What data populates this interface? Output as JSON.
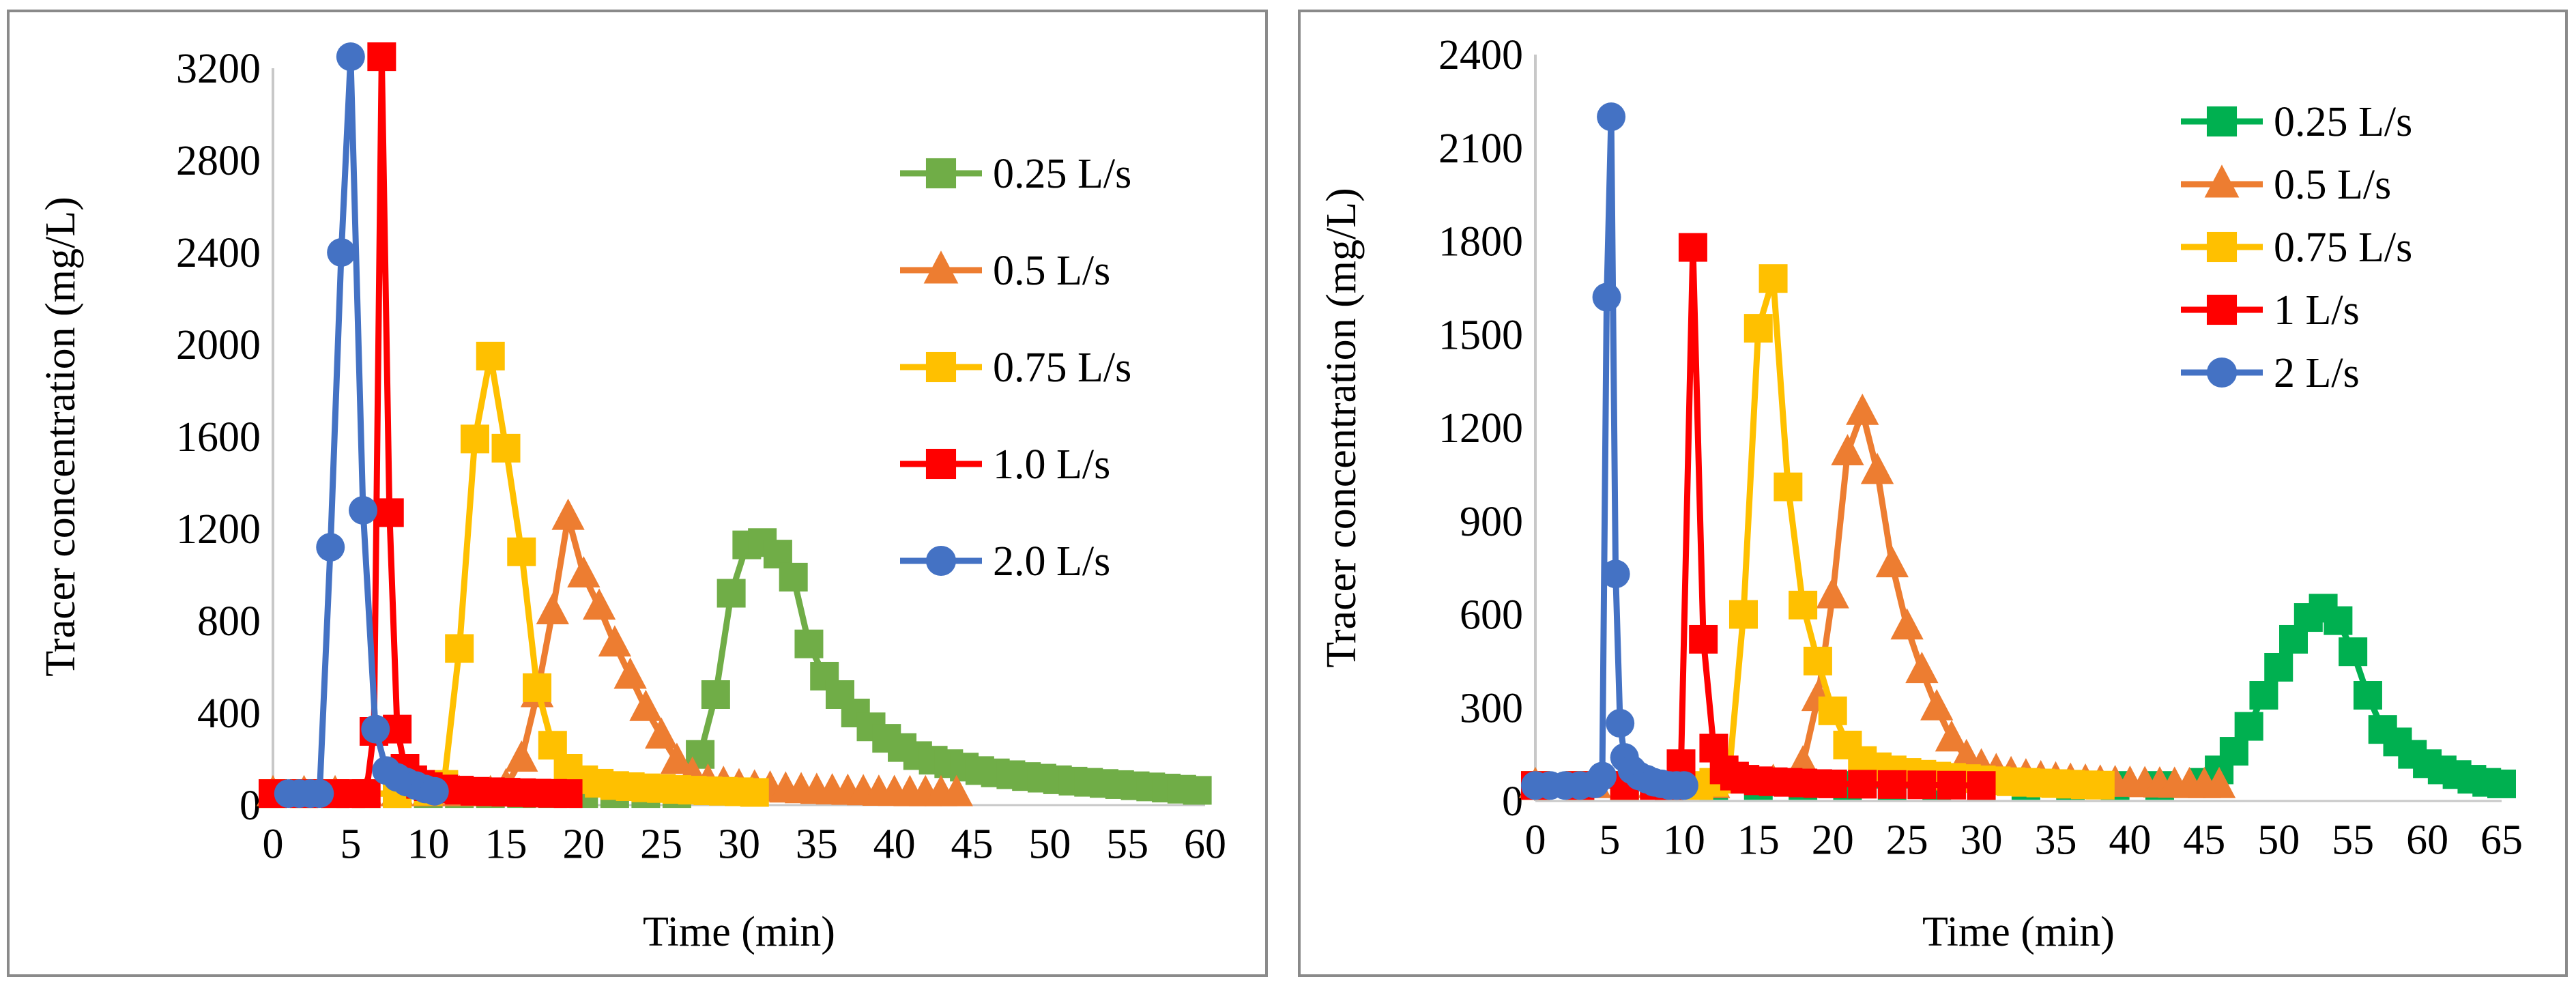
{
  "chart_data": [
    {
      "type": "line",
      "title": "",
      "xlabel": "Time (min)",
      "ylabel": "Tracer concentration (mg/L)",
      "xlim": [
        0,
        60
      ],
      "ylim": [
        0,
        3200
      ],
      "xticks": [
        0,
        5,
        10,
        15,
        20,
        25,
        30,
        35,
        40,
        45,
        50,
        55,
        60
      ],
      "xtick_labels": [
        "0",
        "5",
        "10",
        "15",
        "20",
        "25",
        "30",
        "35",
        "40",
        "45",
        "50",
        "55",
        "60"
      ],
      "yticks": [
        0,
        400,
        800,
        1200,
        1600,
        2000,
        2400,
        2800,
        3200
      ],
      "ytick_labels": [
        "0",
        "400",
        "800",
        "1200",
        "1600",
        "2000",
        "2400",
        "2800",
        "3200"
      ],
      "legend_position": "right",
      "series": [
        {
          "name": "0.25 L/s",
          "color": "#70ad47",
          "marker": "square",
          "x": [
            0,
            2,
            4,
            6,
            8,
            10,
            12,
            14,
            16,
            18,
            20,
            22,
            24,
            26,
            27.5,
            28.5,
            29.5,
            30.5,
            31.5,
            32.5,
            33.5,
            34.5,
            35.5,
            36.5,
            37.5,
            38.5,
            39.5,
            40.5,
            41.5,
            42.5,
            43.5,
            44.5,
            45.5,
            46.5,
            47.5,
            48.5,
            49.5,
            50.5,
            51.5,
            52.5,
            53.5,
            54.5,
            55.5,
            56.5,
            57.5,
            58.5,
            59.5
          ],
          "y": [
            50,
            50,
            50,
            50,
            50,
            50,
            50,
            50,
            50,
            50,
            50,
            50,
            50,
            50,
            220,
            480,
            920,
            1130,
            1140,
            1090,
            990,
            700,
            560,
            480,
            400,
            340,
            290,
            250,
            215,
            195,
            180,
            165,
            150,
            140,
            132,
            124,
            117,
            110,
            104,
            99,
            94,
            89,
            84,
            79,
            74,
            69,
            64
          ]
        },
        {
          "name": "0.5 L/s",
          "color": "#ed7d31",
          "marker": "triangle",
          "x": [
            0,
            2,
            4,
            6,
            8,
            10,
            12,
            14,
            15,
            16,
            17,
            18,
            19,
            20,
            21,
            22,
            23,
            24,
            25,
            26,
            27,
            28,
            29,
            30,
            31,
            32,
            33,
            34,
            35,
            36,
            37,
            38,
            39,
            40,
            41,
            42,
            43,
            44
          ],
          "y": [
            50,
            50,
            50,
            50,
            50,
            50,
            50,
            50,
            80,
            200,
            480,
            840,
            1250,
            1000,
            860,
            700,
            560,
            420,
            300,
            190,
            130,
            100,
            90,
            80,
            75,
            70,
            66,
            63,
            60,
            58,
            56,
            54,
            52,
            51,
            50,
            50,
            50,
            50
          ]
        },
        {
          "name": "0.75 L/s",
          "color": "#ffc000",
          "marker": "square",
          "x": [
            0,
            2,
            4,
            6,
            8,
            10,
            11,
            12,
            13,
            14,
            15,
            16,
            17,
            18,
            19,
            20,
            21,
            22,
            23,
            24,
            25,
            26,
            27,
            28,
            29,
            30,
            31
          ],
          "y": [
            50,
            50,
            50,
            50,
            50,
            60,
            90,
            680,
            1590,
            1950,
            1550,
            1100,
            510,
            260,
            160,
            110,
            95,
            85,
            80,
            75,
            72,
            68,
            65,
            62,
            60,
            58,
            55
          ]
        },
        {
          "name": "1.0 L/s",
          "color": "#ff0000",
          "marker": "square",
          "x": [
            0,
            2,
            4,
            5,
            6,
            6.5,
            7,
            7.5,
            8,
            8.5,
            9,
            9.5,
            10,
            11,
            12,
            13,
            14,
            15,
            16,
            17,
            18,
            19
          ],
          "y": [
            50,
            50,
            50,
            50,
            50,
            320,
            3250,
            1270,
            330,
            160,
            110,
            90,
            80,
            70,
            65,
            60,
            58,
            56,
            54,
            52,
            51,
            50
          ]
        },
        {
          "name": "2.0 L/s",
          "color": "#4472c4",
          "marker": "circle",
          "x": [
            1,
            1.7,
            2.4,
            3,
            3.7,
            4.4,
            5,
            5.8,
            6.6,
            7.3,
            8,
            8.6,
            9.2,
            9.8,
            10.4
          ],
          "y": [
            50,
            50,
            50,
            50,
            1120,
            2400,
            3250,
            1280,
            330,
            150,
            120,
            100,
            85,
            70,
            60
          ]
        }
      ]
    },
    {
      "type": "line",
      "title": "",
      "xlabel": "Time (min)",
      "ylabel": "Tracer concentration (mg/L)",
      "xlim": [
        0,
        65
      ],
      "ylim": [
        0,
        2400
      ],
      "xticks": [
        0,
        5,
        10,
        15,
        20,
        25,
        30,
        35,
        40,
        45,
        50,
        55,
        60,
        65
      ],
      "xtick_labels": [
        "0",
        "5",
        "10",
        "15",
        "20",
        "25",
        "30",
        "35",
        "40",
        "45",
        "50",
        "55",
        "60",
        "65"
      ],
      "yticks": [
        0,
        300,
        600,
        900,
        1200,
        1500,
        1800,
        2100,
        2400
      ],
      "ytick_labels": [
        "0",
        "300",
        "600",
        "900",
        "1200",
        "1500",
        "1800",
        "2100",
        "2400"
      ],
      "legend_position": "top-right",
      "series": [
        {
          "name": "0.25 L/s",
          "color": "#00b050",
          "marker": "square",
          "x": [
            0,
            3,
            6,
            9,
            12,
            15,
            18,
            21,
            24,
            27,
            30,
            33,
            36,
            39,
            42,
            45,
            46,
            47,
            48,
            49,
            50,
            51,
            52,
            53,
            54,
            55,
            56,
            57,
            58,
            59,
            60,
            61,
            62,
            63,
            64,
            65
          ],
          "y": [
            50,
            50,
            50,
            50,
            50,
            50,
            50,
            50,
            50,
            50,
            50,
            50,
            50,
            50,
            50,
            60,
            100,
            160,
            240,
            340,
            430,
            520,
            590,
            620,
            580,
            480,
            340,
            230,
            190,
            150,
            120,
            100,
            85,
            70,
            60,
            55
          ]
        },
        {
          "name": "0.5 L/s",
          "color": "#ed7d31",
          "marker": "triangle",
          "x": [
            0,
            4,
            8,
            12,
            16,
            18,
            19,
            20,
            21,
            22,
            23,
            24,
            25,
            26,
            27,
            28,
            29,
            30,
            31,
            32,
            33,
            34,
            35,
            36,
            37,
            38,
            39,
            40,
            41,
            42,
            43,
            44,
            45,
            46
          ],
          "y": [
            50,
            50,
            50,
            50,
            60,
            120,
            330,
            660,
            1120,
            1250,
            1060,
            760,
            560,
            420,
            300,
            200,
            140,
            110,
            95,
            85,
            78,
            72,
            68,
            64,
            61,
            58,
            56,
            54,
            53,
            52,
            51,
            50,
            50,
            50
          ]
        },
        {
          "name": "0.75 L/s",
          "color": "#ffc000",
          "marker": "square",
          "x": [
            0,
            3,
            6,
            9,
            11,
            12,
            13,
            14,
            15,
            16,
            17,
            18,
            19,
            20,
            21,
            22,
            23,
            24,
            25,
            26,
            27,
            28,
            29,
            30,
            31,
            32,
            33,
            34,
            35,
            36,
            37,
            38
          ],
          "y": [
            50,
            50,
            50,
            50,
            50,
            60,
            70,
            600,
            1520,
            1680,
            1010,
            630,
            450,
            290,
            180,
            130,
            110,
            100,
            92,
            86,
            80,
            76,
            72,
            68,
            65,
            62,
            60,
            58,
            56,
            54,
            52,
            51
          ]
        },
        {
          "name": "1 L/s",
          "color": "#ff0000",
          "marker": "square",
          "x": [
            0,
            3,
            6,
            8,
            9,
            9.8,
            10.6,
            11.3,
            12,
            12.7,
            13.4,
            14.1,
            15,
            16,
            17,
            18,
            19,
            20,
            22,
            24,
            26,
            28,
            30
          ],
          "y": [
            50,
            50,
            50,
            50,
            50,
            120,
            1780,
            520,
            170,
            100,
            80,
            70,
            65,
            62,
            60,
            58,
            56,
            55,
            54,
            53,
            52,
            51,
            50
          ]
        },
        {
          "name": "2 L/s",
          "color": "#4472c4",
          "marker": "circle",
          "x": [
            0,
            1,
            2,
            3,
            4,
            4.5,
            4.8,
            5.1,
            5.4,
            5.7,
            6,
            6.5,
            7,
            7.5,
            8,
            8.5,
            9,
            9.5,
            10
          ],
          "y": [
            50,
            50,
            50,
            50,
            55,
            80,
            1620,
            2200,
            730,
            250,
            140,
            100,
            80,
            70,
            60,
            55,
            50,
            50,
            50
          ]
        }
      ]
    }
  ]
}
